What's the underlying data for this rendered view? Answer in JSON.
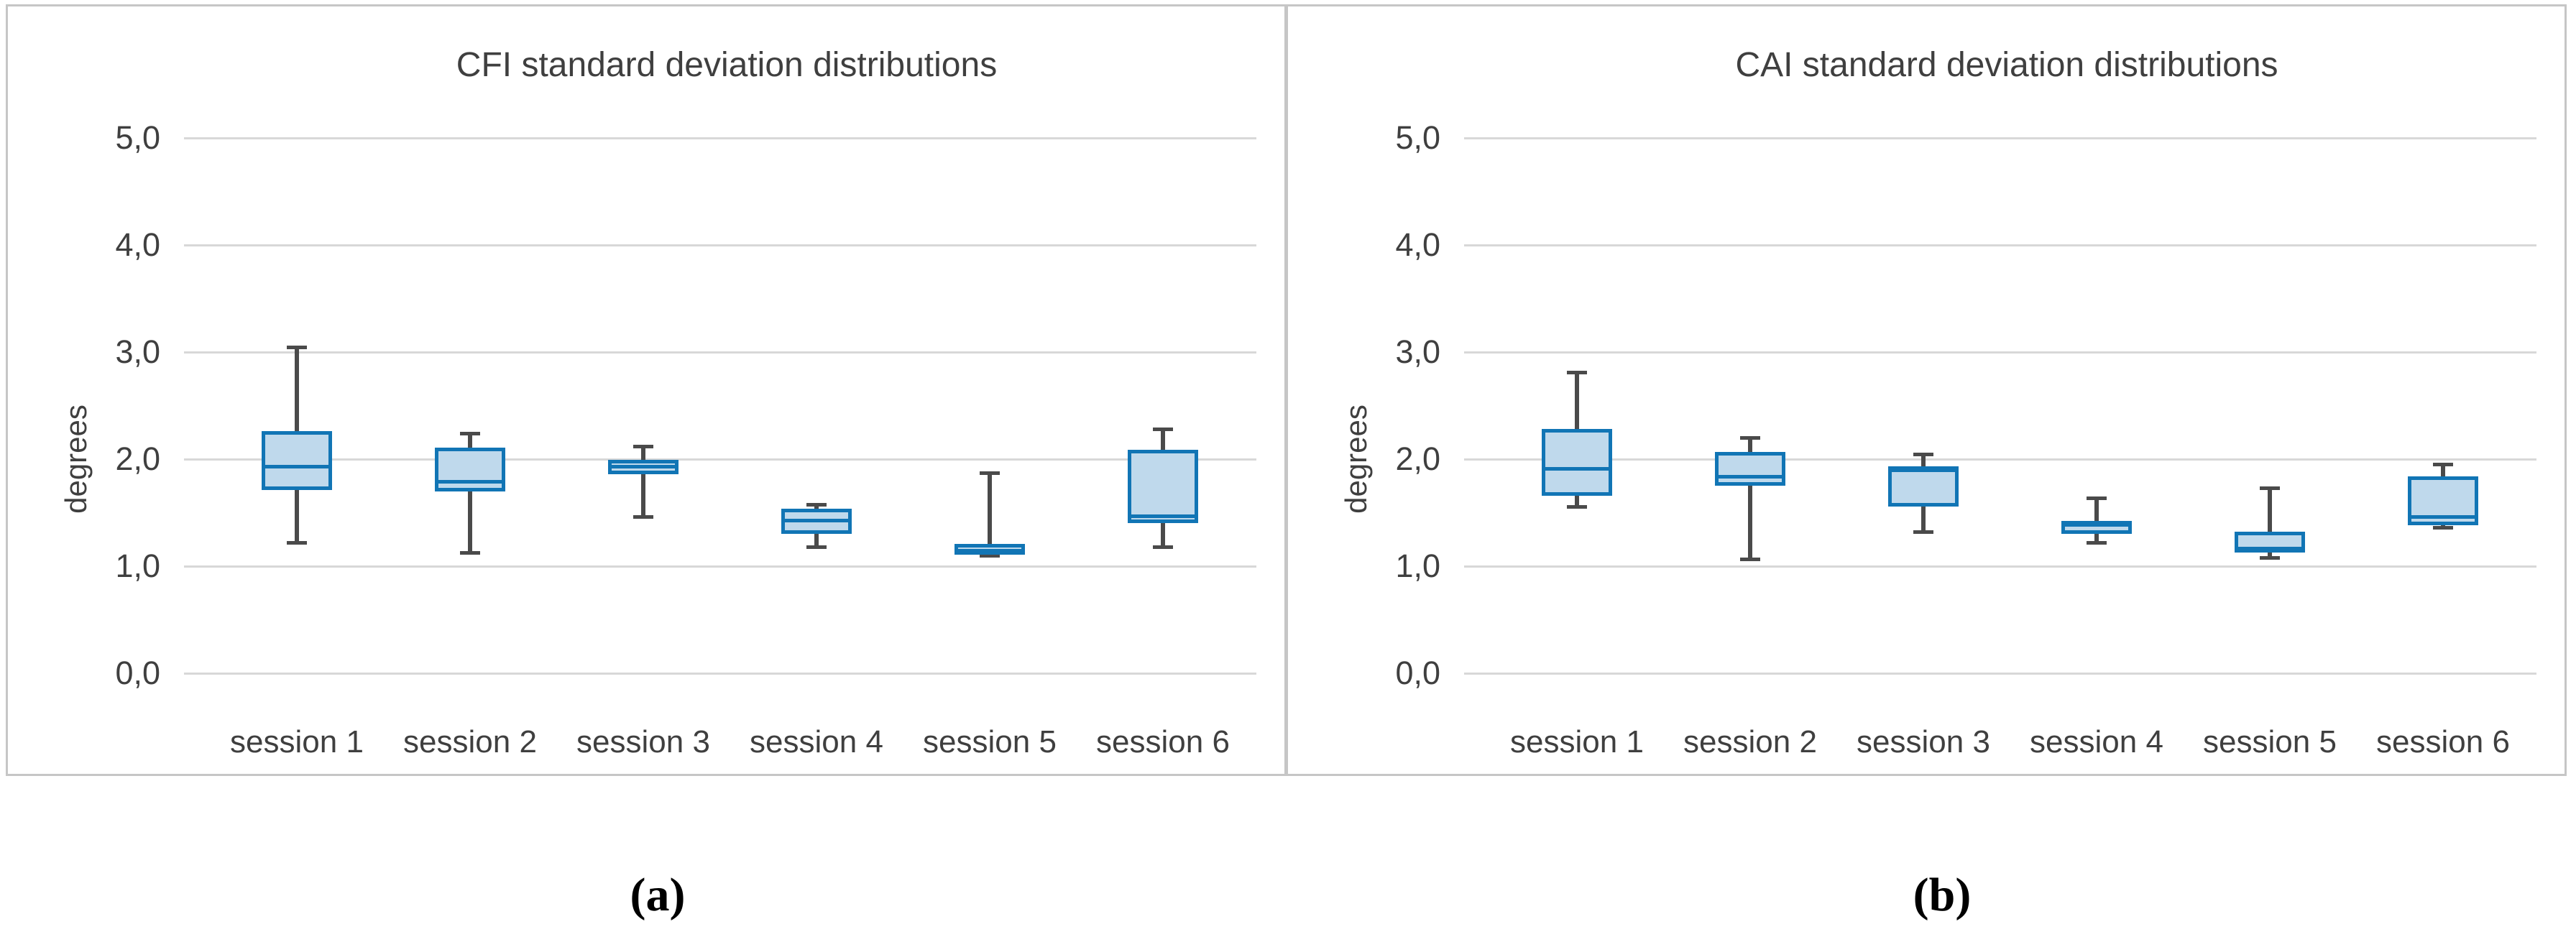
{
  "figure": {
    "footer_labels": {
      "a": "(a)",
      "b": "(b)"
    }
  },
  "colors": {
    "box_fill": "#bfd9ec",
    "box_border": "#1175b5",
    "whisker": "#4a4a4a",
    "gridline": "#d8d8d8",
    "panel_border": "#c6c6c6",
    "text": "#3f3f3f"
  },
  "chart_data": [
    {
      "type": "box",
      "title": "CFI standard deviation distributions",
      "ylabel": "degrees",
      "xlabel": "",
      "ylim": [
        0,
        5
      ],
      "grid": true,
      "legend_position": "none",
      "y_ticks": {
        "values": [
          5,
          4,
          3,
          2,
          1,
          0
        ],
        "labels": [
          "5,0",
          "4,0",
          "3,0",
          "2,0",
          "1,0",
          "0,0"
        ]
      },
      "categories": [
        "session 1",
        "session 2",
        "session 3",
        "session 4",
        "session 5",
        "session 6"
      ],
      "series": [
        {
          "category": "session 1",
          "min": 1.22,
          "q1": 1.71,
          "median": 1.93,
          "q3": 2.26,
          "max": 3.05
        },
        {
          "category": "session 2",
          "min": 1.13,
          "q1": 1.7,
          "median": 1.79,
          "q3": 2.11,
          "max": 2.24
        },
        {
          "category": "session 3",
          "min": 1.46,
          "q1": 1.86,
          "median": 1.93,
          "q3": 1.99,
          "max": 2.12
        },
        {
          "category": "session 4",
          "min": 1.18,
          "q1": 1.3,
          "median": 1.43,
          "q3": 1.54,
          "max": 1.58
        },
        {
          "category": "session 5",
          "min": 1.1,
          "q1": 1.11,
          "median": 1.15,
          "q3": 1.21,
          "max": 1.87
        },
        {
          "category": "session 6",
          "min": 1.18,
          "q1": 1.4,
          "median": 1.47,
          "q3": 2.09,
          "max": 2.28
        }
      ]
    },
    {
      "type": "box",
      "title": "CAI standard deviation distributions",
      "ylabel": "degrees",
      "xlabel": "",
      "ylim": [
        0,
        5
      ],
      "grid": true,
      "legend_position": "none",
      "y_ticks": {
        "values": [
          5,
          4,
          3,
          2,
          1,
          0
        ],
        "labels": [
          "5,0",
          "4,0",
          "3,0",
          "2,0",
          "1,0",
          "0,0"
        ]
      },
      "categories": [
        "session 1",
        "session 2",
        "session 3",
        "session 4",
        "session 5",
        "session 6"
      ],
      "series": [
        {
          "category": "session 1",
          "min": 1.56,
          "q1": 1.66,
          "median": 1.91,
          "q3": 2.28,
          "max": 2.81
        },
        {
          "category": "session 2",
          "min": 1.07,
          "q1": 1.75,
          "median": 1.84,
          "q3": 2.07,
          "max": 2.2
        },
        {
          "category": "session 3",
          "min": 1.32,
          "q1": 1.56,
          "median": 1.9,
          "q3": 1.93,
          "max": 2.05
        },
        {
          "category": "session 4",
          "min": 1.22,
          "q1": 1.3,
          "median": 1.39,
          "q3": 1.42,
          "max": 1.64
        },
        {
          "category": "session 5",
          "min": 1.08,
          "q1": 1.13,
          "median": 1.17,
          "q3": 1.32,
          "max": 1.73
        },
        {
          "category": "session 6",
          "min": 1.36,
          "q1": 1.38,
          "median": 1.46,
          "q3": 1.84,
          "max": 1.95
        }
      ]
    }
  ]
}
